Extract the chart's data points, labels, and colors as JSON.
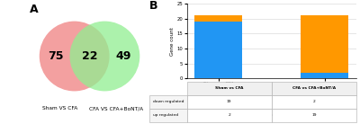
{
  "venn": {
    "set1_only": 75,
    "set2_only": 49,
    "intersection": 22,
    "set1_label": "Sham VS CFA",
    "set2_label": "CFA VS CFA+BoNT/A",
    "set1_color": "#F08080",
    "set2_color": "#90EE90",
    "intersection_color": "#D4A96A"
  },
  "bar": {
    "categories": [
      "Sham vs CFA",
      "CFA vs CFA+BoNT/A"
    ],
    "down_regulated": [
      19,
      2
    ],
    "up_regulated": [
      2,
      19
    ],
    "down_color": "#2196F3",
    "up_color": "#FF9800",
    "ylabel": "Gene count",
    "ylim": [
      0,
      25
    ],
    "yticks": [
      0,
      5,
      10,
      15,
      20,
      25
    ]
  },
  "table": {
    "row_labels": [
      "down regulated",
      "up regulated"
    ],
    "col_labels": [
      "Sham vs CFA",
      "CFA vs CFA+BoNT/A"
    ],
    "data": [
      [
        19,
        2
      ],
      [
        2,
        19
      ]
    ]
  },
  "panel_A_label": "A",
  "panel_B_label": "B"
}
